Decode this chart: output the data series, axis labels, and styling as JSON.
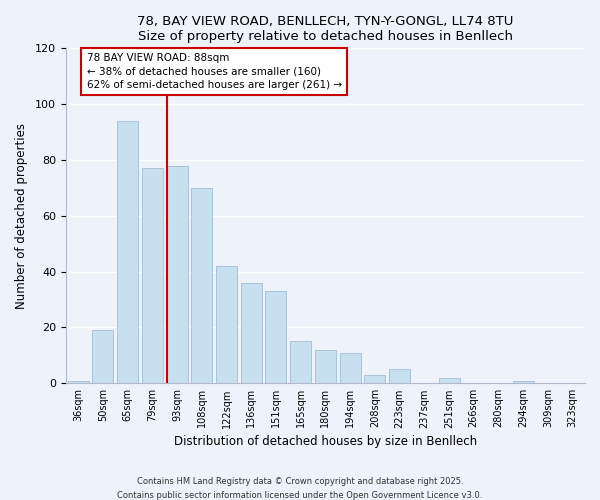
{
  "title": "78, BAY VIEW ROAD, BENLLECH, TYN-Y-GONGL, LL74 8TU",
  "subtitle": "Size of property relative to detached houses in Benllech",
  "xlabel": "Distribution of detached houses by size in Benllech",
  "ylabel": "Number of detached properties",
  "bar_color": "#c8dff0",
  "bar_edge_color": "#a0bfd8",
  "background_color": "#eef2fa",
  "grid_color": "#ffffff",
  "categories": [
    "36sqm",
    "50sqm",
    "65sqm",
    "79sqm",
    "93sqm",
    "108sqm",
    "122sqm",
    "136sqm",
    "151sqm",
    "165sqm",
    "180sqm",
    "194sqm",
    "208sqm",
    "223sqm",
    "237sqm",
    "251sqm",
    "266sqm",
    "280sqm",
    "294sqm",
    "309sqm",
    "323sqm"
  ],
  "values": [
    1,
    19,
    94,
    77,
    78,
    70,
    42,
    36,
    33,
    15,
    12,
    11,
    3,
    5,
    0,
    2,
    0,
    0,
    1,
    0,
    0
  ],
  "ylim": [
    0,
    120
  ],
  "yticks": [
    0,
    20,
    40,
    60,
    80,
    100,
    120
  ],
  "vline_index": 4,
  "vline_color": "#cc0000",
  "annotation_title": "78 BAY VIEW ROAD: 88sqm",
  "annotation_line1": "← 38% of detached houses are smaller (160)",
  "annotation_line2": "62% of semi-detached houses are larger (261) →",
  "footnote1": "Contains HM Land Registry data © Crown copyright and database right 2025.",
  "footnote2": "Contains public sector information licensed under the Open Government Licence v3.0."
}
